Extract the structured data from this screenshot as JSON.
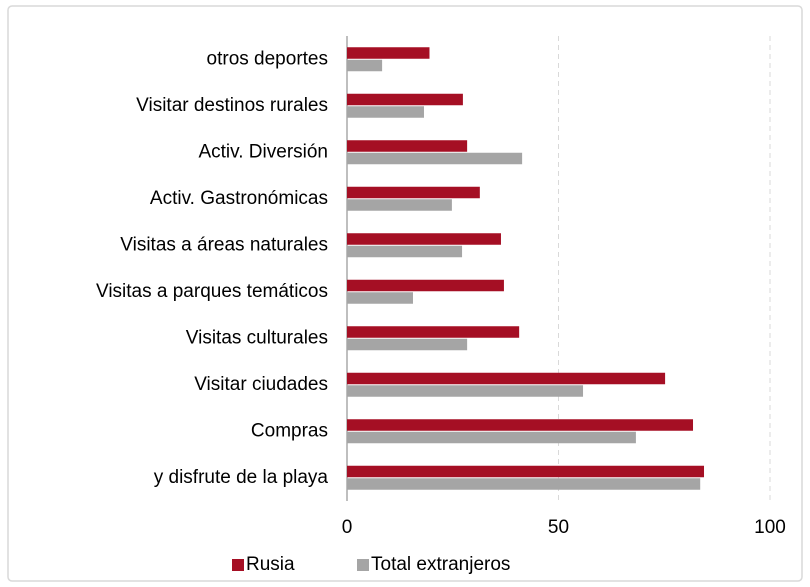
{
  "chart_data": {
    "type": "bar",
    "orientation": "horizontal",
    "categories": [
      "otros deportes",
      "Visitar destinos rurales",
      "Activ. Diversión",
      "Activ. Gastronómicas",
      "Visitas a áreas naturales",
      "Visitas a parques temáticos",
      "Visitas culturales",
      "Visitar ciudades",
      "Compras",
      "y disfrute de la playa"
    ],
    "series": [
      {
        "name": "Rusia",
        "color": "#a50f24",
        "values": [
          19.5,
          27.4,
          28.4,
          31.4,
          36.4,
          37.1,
          40.7,
          75.2,
          81.8,
          84.4
        ]
      },
      {
        "name": "Total extranjeros",
        "color": "#a5a5a5",
        "values": [
          8.3,
          18.2,
          41.4,
          24.8,
          27.2,
          15.6,
          28.4,
          55.8,
          68.3,
          83.5
        ]
      }
    ],
    "xlim": [
      0,
      100
    ],
    "xticks": [
      0,
      50,
      100
    ],
    "grid": true,
    "legend": "bottom"
  }
}
